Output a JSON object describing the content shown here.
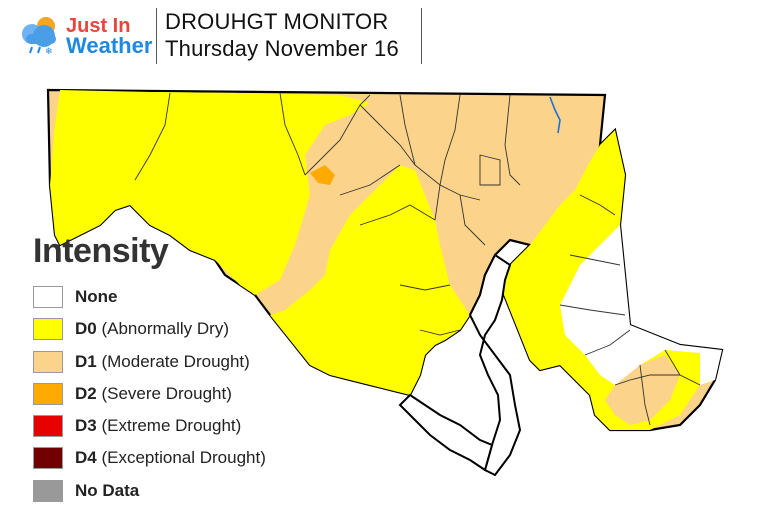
{
  "brand": {
    "line1": "Just In",
    "line2": "Weather"
  },
  "header": {
    "title": "DROUHGT MONITOR",
    "date": "Thursday November 16"
  },
  "legend": {
    "title": "Intensity",
    "items": [
      {
        "code": "None",
        "desc": "",
        "color": "#ffffff"
      },
      {
        "code": "D0",
        "desc": "(Abnormally Dry)",
        "color": "#ffff00"
      },
      {
        "code": "D1",
        "desc": "(Moderate Drought)",
        "color": "#fcd38a"
      },
      {
        "code": "D2",
        "desc": "(Severe Drought)",
        "color": "#ffaa00"
      },
      {
        "code": "D3",
        "desc": "(Extreme Drought)",
        "color": "#e60000"
      },
      {
        "code": "D4",
        "desc": "(Exceptional Drought)",
        "color": "#730000"
      },
      {
        "code": "No Data",
        "desc": "",
        "color": "#999999"
      }
    ]
  },
  "map_colors": {
    "d0": "#ffff00",
    "d1": "#fcd38a",
    "d2": "#ffaa00",
    "none": "#ffffff",
    "outline": "#000000",
    "county": "#333333",
    "river": "#1e6fd9"
  }
}
